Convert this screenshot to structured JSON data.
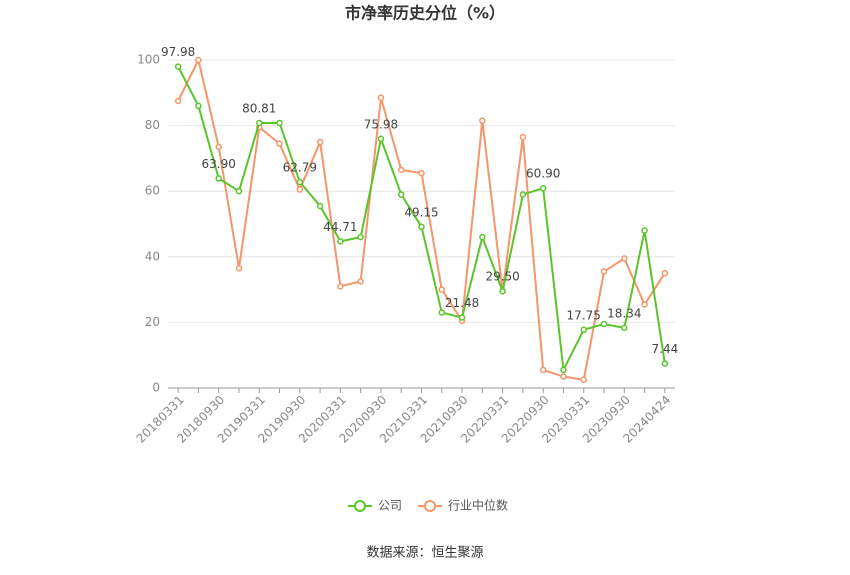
{
  "chart_data": {
    "type": "line",
    "title": "市净率历史分位（%）",
    "categories": [
      "20180331",
      null,
      "20180930",
      null,
      "20190331",
      null,
      "20190930",
      null,
      "20200331",
      null,
      "20200930",
      null,
      "20210331",
      null,
      "20210930",
      null,
      "20220331",
      null,
      "20220930",
      null,
      "20230331",
      null,
      "20230930",
      null,
      "20240424"
    ],
    "series": [
      {
        "name": "公司",
        "color": "#5ac42c",
        "values": [
          97.98,
          86,
          63.9,
          60,
          80.81,
          80.8,
          62.79,
          55.5,
          44.71,
          46,
          75.98,
          59,
          49.15,
          23,
          21.48,
          46,
          29.5,
          59,
          60.9,
          5.5,
          17.75,
          19.5,
          18.34,
          48,
          7.44
        ],
        "value_labels": [
          "97.98",
          null,
          "63.90",
          null,
          "80.81",
          null,
          "62.79",
          null,
          "44.71",
          null,
          "75.98",
          null,
          "49.15",
          null,
          "21.48",
          null,
          "29.50",
          null,
          "60.90",
          null,
          "17.75",
          null,
          "18.34",
          null,
          "7.44"
        ]
      },
      {
        "name": "行业中位数",
        "color": "#f4956a",
        "values": [
          87.5,
          100,
          73.5,
          36.5,
          79.5,
          74.5,
          60.5,
          75,
          31,
          32.5,
          88.5,
          66.5,
          65.5,
          30,
          20.5,
          81.5,
          29.5,
          76.5,
          5.5,
          3.5,
          2.5,
          35.5,
          39.5,
          25.5,
          35
        ]
      }
    ],
    "ylim": [
      0,
      100
    ],
    "yticks": [
      0,
      20,
      40,
      60,
      80,
      100
    ],
    "grid": true,
    "legend": "bottom",
    "source": "数据来源：恒生聚源"
  }
}
